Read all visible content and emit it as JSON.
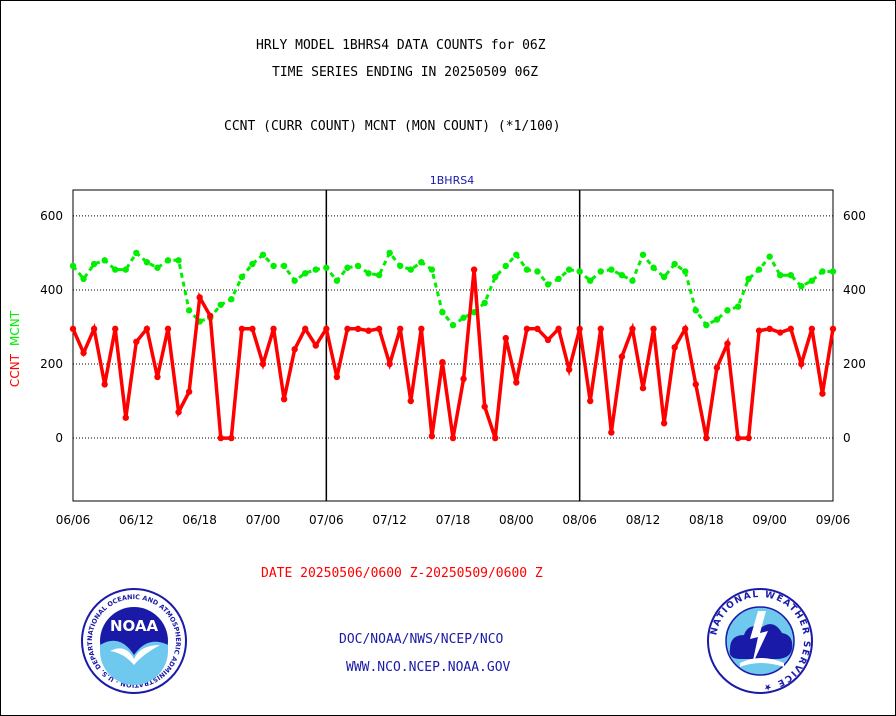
{
  "header": {
    "title_line1": "HRLY MODEL 1BHRS4 DATA COUNTS for 06Z",
    "title_line2": "TIME SERIES ENDING IN 20250509 06Z",
    "subtitle": "CCNT (CURR COUNT) MCNT (MON COUNT) (*1/100)"
  },
  "footer": {
    "date_range": "DATE 20250506/0600 Z-20250509/0600 Z",
    "org_path": "DOC/NOAA/NWS/NCEP/NCO",
    "website": "WWW.NCO.NCEP.NOAA.GOV",
    "noaa_logo_text": "NOAA",
    "noaa_seal_text": "NATIONAL OCEANIC AND ATMOSPHERIC ADMINISTRATION · U.S. DEPARTMENT OF COMMERCE ·",
    "nws_seal_text": "NATIONAL WEATHER SERVICE ★"
  },
  "colors": {
    "ccnt": "#ff0000",
    "mcnt": "#00ee00",
    "series_label": "#1a1aa8",
    "grid": "#000000"
  },
  "chart_data": {
    "type": "line",
    "series_title": "1BHRS4",
    "ylabel_parts": [
      {
        "text": "CCNT",
        "color": "#ff0000"
      },
      {
        "text": "MCNT",
        "color": "#00ee00"
      }
    ],
    "ylim": [
      -170,
      670
    ],
    "yticks": [
      0,
      200,
      400,
      600
    ],
    "xlim": [
      0,
      72
    ],
    "xticks": [
      {
        "x": 0,
        "label": "06/06"
      },
      {
        "x": 6,
        "label": "06/12"
      },
      {
        "x": 12,
        "label": "06/18"
      },
      {
        "x": 18,
        "label": "07/00"
      },
      {
        "x": 24,
        "label": "07/06"
      },
      {
        "x": 30,
        "label": "07/12"
      },
      {
        "x": 36,
        "label": "07/18"
      },
      {
        "x": 42,
        "label": "08/00"
      },
      {
        "x": 48,
        "label": "08/06"
      },
      {
        "x": 54,
        "label": "08/12"
      },
      {
        "x": 60,
        "label": "08/18"
      },
      {
        "x": 66,
        "label": "09/00"
      },
      {
        "x": 72,
        "label": "09/06"
      }
    ],
    "day_dividers": [
      24,
      48
    ],
    "grid": "horizontal dotted at 0, 200, 400, 600",
    "series": [
      {
        "name": "CCNT",
        "style": "solid",
        "values": [
          295,
          230,
          295,
          145,
          295,
          55,
          260,
          295,
          165,
          295,
          70,
          125,
          380,
          330,
          0,
          0,
          295,
          295,
          200,
          295,
          105,
          240,
          295,
          250,
          295,
          165,
          295,
          295,
          290,
          295,
          200,
          295,
          100,
          295,
          5,
          205,
          0,
          160,
          455,
          85,
          0,
          270,
          150,
          295,
          295,
          265,
          295,
          185,
          295,
          100,
          295,
          15,
          220,
          295,
          135,
          295,
          40,
          245,
          295,
          145,
          0,
          190,
          255,
          0,
          0,
          290,
          295,
          285,
          295,
          200,
          295,
          120,
          295
        ]
      },
      {
        "name": "MCNT",
        "style": "dashed",
        "values": [
          465,
          430,
          470,
          480,
          455,
          455,
          500,
          475,
          460,
          480,
          480,
          345,
          315,
          325,
          360,
          375,
          435,
          470,
          495,
          465,
          465,
          425,
          445,
          455,
          460,
          425,
          460,
          465,
          445,
          440,
          500,
          465,
          455,
          475,
          455,
          340,
          305,
          325,
          340,
          365,
          435,
          465,
          495,
          455,
          450,
          415,
          430,
          455,
          450,
          425,
          450,
          455,
          440,
          425,
          495,
          460,
          435,
          470,
          450,
          345,
          305,
          320,
          345,
          355,
          430,
          455,
          490,
          440,
          440,
          410,
          425,
          450,
          450
        ]
      }
    ]
  }
}
